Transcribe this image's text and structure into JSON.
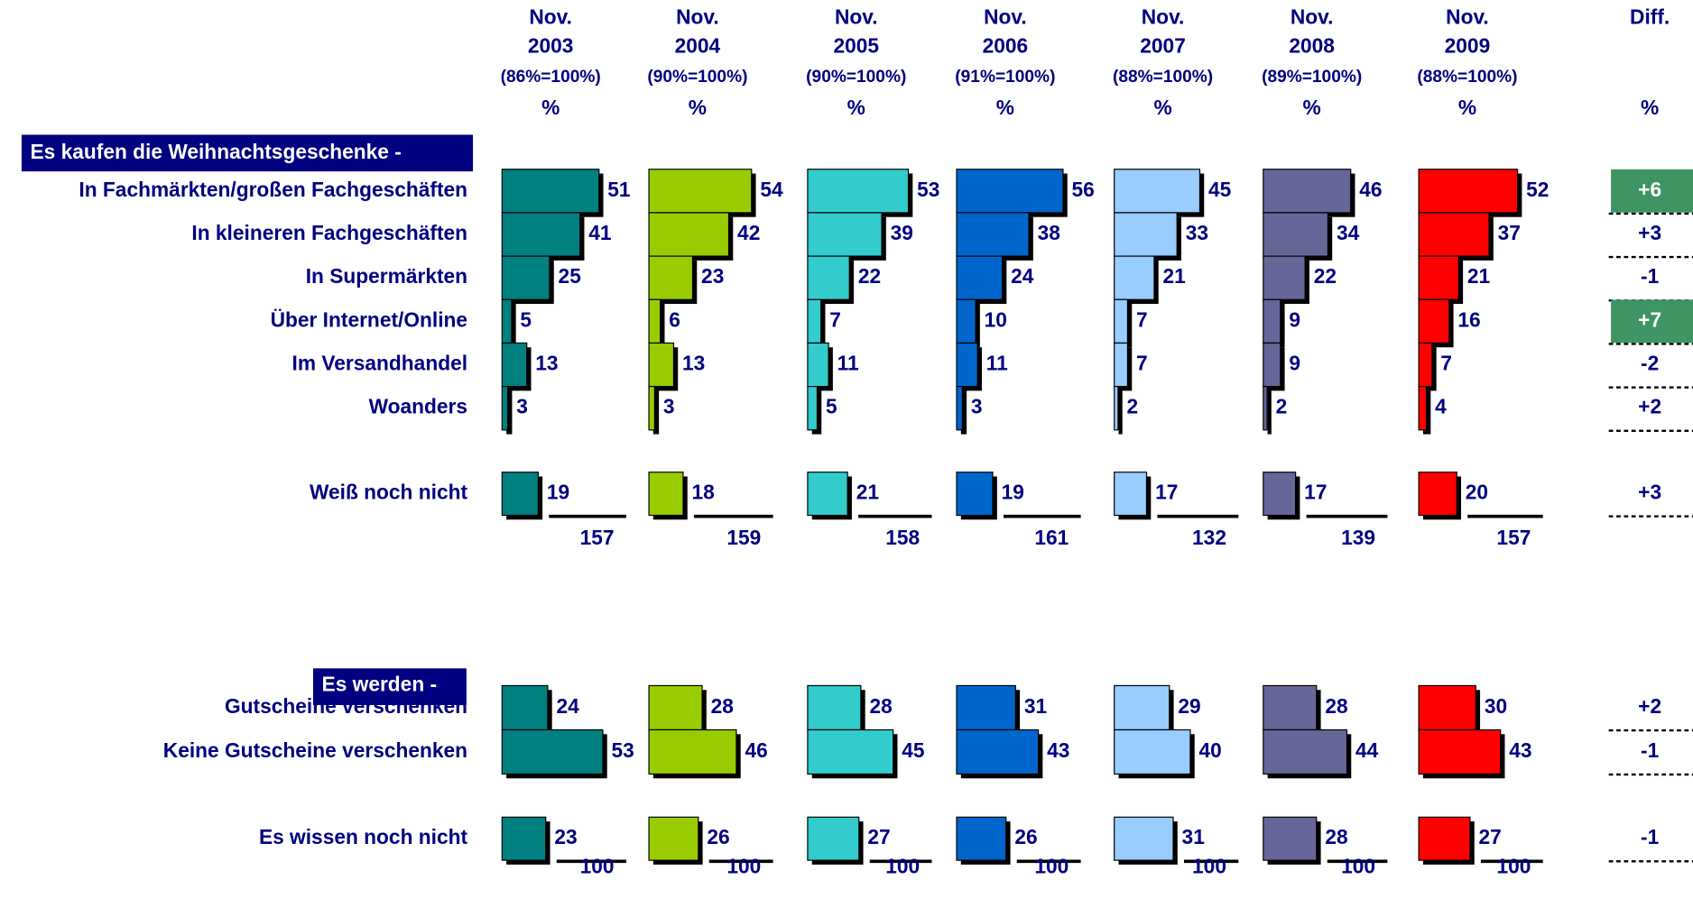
{
  "columns": [
    {
      "period": "Nov.",
      "year": "2003",
      "base": "(86%=100%)",
      "unit": "%",
      "color": "#008080"
    },
    {
      "period": "Nov.",
      "year": "2004",
      "base": "(90%=100%)",
      "unit": "%",
      "color": "#99cc00"
    },
    {
      "period": "Nov.",
      "year": "2005",
      "base": "(90%=100%)",
      "unit": "%",
      "color": "#33cccc"
    },
    {
      "period": "Nov.",
      "year": "2006",
      "base": "(91%=100%)",
      "unit": "%",
      "color": "#0066cc"
    },
    {
      "period": "Nov.",
      "year": "2007",
      "base": "(88%=100%)",
      "unit": "%",
      "color": "#99ccff"
    },
    {
      "period": "Nov.",
      "year": "2008",
      "base": "(89%=100%)",
      "unit": "%",
      "color": "#666699"
    },
    {
      "period": "Nov.",
      "year": "2009",
      "base": "(88%=100%)",
      "unit": "%",
      "color": "#ff0000"
    }
  ],
  "diff_header": {
    "title": "Diff.",
    "unit": "%"
  },
  "sections": [
    {
      "heading": "Es kaufen die Weihnachtsgeschenke -",
      "rows": [
        {
          "label": "In Fachmärkten/großen Fachgeschäften",
          "values": [
            51,
            54,
            53,
            56,
            45,
            46,
            52
          ],
          "diff": "+6",
          "highlight": true
        },
        {
          "label": "In kleineren Fachgeschäften",
          "values": [
            41,
            42,
            39,
            38,
            33,
            34,
            37
          ],
          "diff": "+3"
        },
        {
          "label": "In Supermärkten",
          "values": [
            25,
            23,
            22,
            24,
            21,
            22,
            21
          ],
          "diff": "-1"
        },
        {
          "label": "Über Internet/Online",
          "values": [
            5,
            6,
            7,
            10,
            7,
            9,
            16
          ],
          "diff": "+7",
          "highlight": true
        },
        {
          "label": "Im Versandhandel",
          "values": [
            13,
            13,
            11,
            11,
            7,
            9,
            7
          ],
          "diff": "-2"
        },
        {
          "label": "Woanders",
          "values": [
            3,
            3,
            5,
            3,
            2,
            2,
            4
          ],
          "diff": "+2"
        }
      ],
      "undecided": {
        "label": "Weiß noch nicht",
        "values": [
          19,
          18,
          21,
          19,
          17,
          17,
          20
        ],
        "diff": "+3"
      },
      "totals": [
        157,
        159,
        158,
        161,
        132,
        139,
        157
      ]
    },
    {
      "heading": "Es werden -",
      "rows": [
        {
          "label": "Gutscheine verschenken",
          "values": [
            24,
            28,
            28,
            31,
            29,
            28,
            30
          ],
          "diff": "+2"
        },
        {
          "label": "Keine Gutscheine verschenken",
          "values": [
            53,
            46,
            45,
            43,
            40,
            44,
            43
          ],
          "diff": "-1"
        }
      ],
      "undecided": {
        "label": "Es wissen noch nicht",
        "values": [
          23,
          26,
          27,
          26,
          31,
          28,
          27
        ],
        "diff": "-1"
      },
      "totals": [
        100,
        100,
        100,
        100,
        100,
        100,
        100
      ]
    }
  ]
}
